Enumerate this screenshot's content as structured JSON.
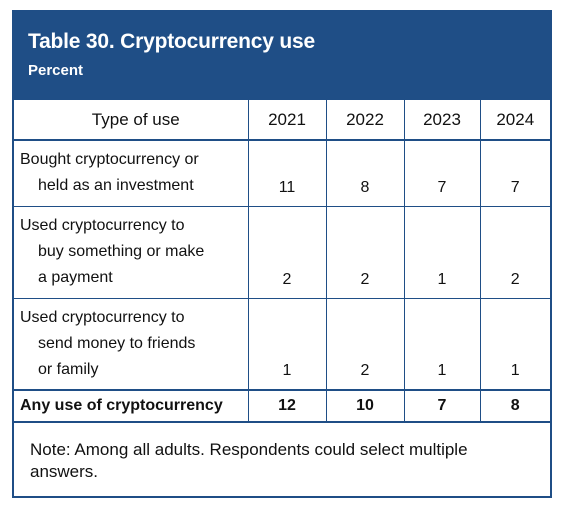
{
  "title": "Table 30. Cryptocurrency use",
  "subtitle": "Percent",
  "columns": [
    "Type of use",
    "2021",
    "2022",
    "2023",
    "2024"
  ],
  "rows": [
    {
      "label_lines": [
        "Bought cryptocurrency or",
        "held as an investment"
      ],
      "values": [
        "11",
        "8",
        "7",
        "7"
      ]
    },
    {
      "label_lines": [
        "Used cryptocurrency to",
        "buy something or make",
        "a payment"
      ],
      "values": [
        "2",
        "2",
        "1",
        "2"
      ]
    },
    {
      "label_lines": [
        "Used cryptocurrency to",
        "send money to friends",
        "or family"
      ],
      "values": [
        "1",
        "2",
        "1",
        "1"
      ]
    }
  ],
  "total": {
    "label": "Any use of cryptocurrency",
    "values": [
      "12",
      "10",
      "7",
      "8"
    ]
  },
  "note": "Note: Among all adults. Respondents could select multiple answers."
}
